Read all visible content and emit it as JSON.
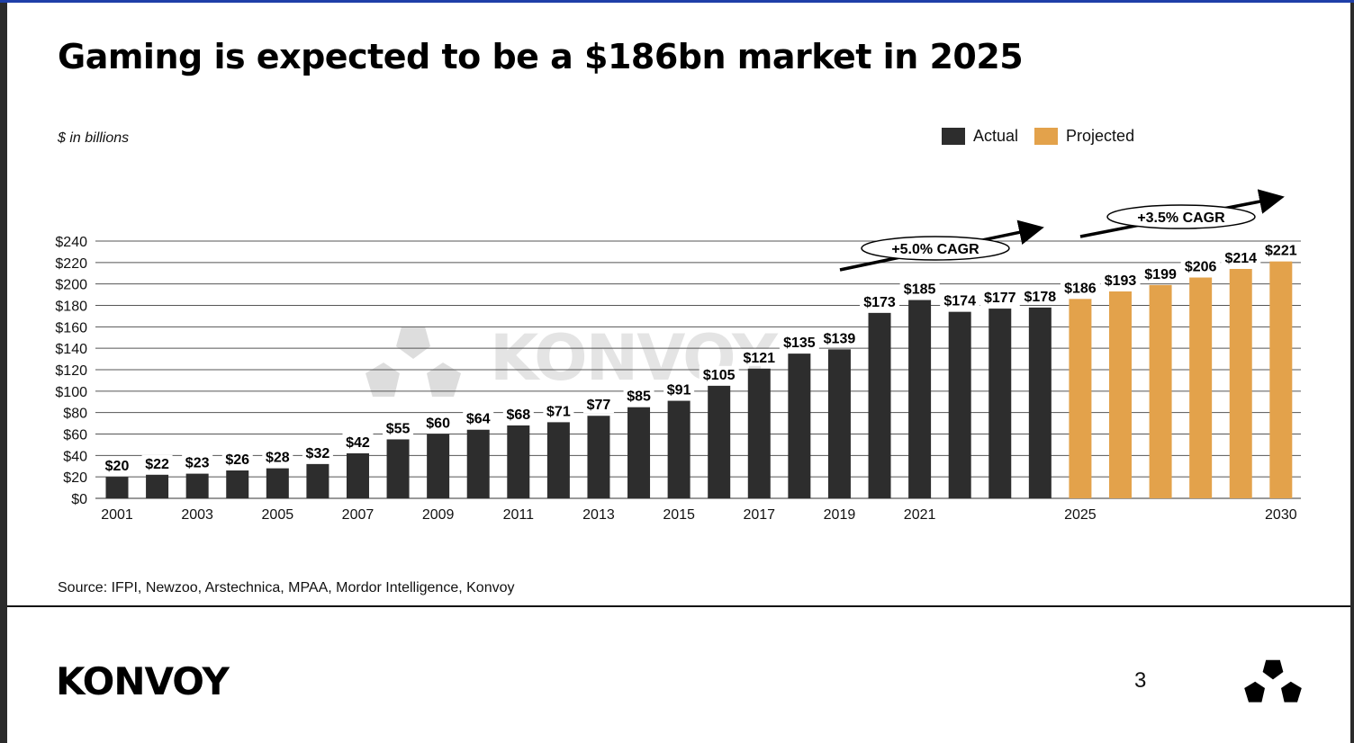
{
  "slide": {
    "title": "Gaming is expected to be a $186bn market in 2025",
    "unit_note": "$ in billions",
    "source": "Source: IFPI, Newzoo, Arstechnica, MPAA, Mordor Intelligence, Konvoy",
    "brand": "KONVOY",
    "page_number": "3",
    "watermark": "KONVOY"
  },
  "legend": [
    {
      "label": "Actual",
      "color": "#2d2d2d"
    },
    {
      "label": "Projected",
      "color": "#e3a24b"
    }
  ],
  "chart_data": {
    "type": "bar",
    "title": "",
    "xlabel": "",
    "ylabel": "",
    "ylim": [
      0,
      240
    ],
    "ytick_labels": [
      "$0",
      "$20",
      "$40",
      "$60",
      "$80",
      "$100",
      "$120",
      "$140",
      "$160",
      "$180",
      "$200",
      "$220",
      "$240"
    ],
    "ytick_values": [
      0,
      20,
      40,
      60,
      80,
      100,
      120,
      140,
      160,
      180,
      200,
      220,
      240
    ],
    "categories": [
      2001,
      2002,
      2003,
      2004,
      2005,
      2006,
      2007,
      2008,
      2009,
      2010,
      2011,
      2012,
      2013,
      2014,
      2015,
      2016,
      2017,
      2018,
      2019,
      2020,
      2021,
      2022,
      2023,
      2024,
      2025,
      2026,
      2027,
      2028,
      2029,
      2030
    ],
    "xtick_labels": [
      "2001",
      "",
      "2003",
      "",
      "2005",
      "",
      "2007",
      "",
      "2009",
      "",
      "2011",
      "",
      "2013",
      "",
      "2015",
      "",
      "2017",
      "",
      "2019",
      "",
      "2021",
      "",
      "",
      "",
      "2025",
      "",
      "",
      "",
      "",
      "2030"
    ],
    "values": [
      20,
      22,
      23,
      26,
      28,
      32,
      42,
      55,
      60,
      64,
      68,
      71,
      77,
      85,
      91,
      105,
      121,
      135,
      139,
      173,
      185,
      174,
      177,
      178,
      186,
      193,
      199,
      206,
      214,
      221
    ],
    "value_labels": [
      "$20",
      "$22",
      "$23",
      "$26",
      "$28",
      "$32",
      "$42",
      "$55",
      "$60",
      "$64",
      "$68",
      "$71",
      "$77",
      "$85",
      "$91",
      "$105",
      "$121",
      "$135",
      "$139",
      "$173",
      "$185",
      "$174",
      "$177",
      "$178",
      "$186",
      "$193",
      "$199",
      "$206",
      "$214",
      "$221"
    ],
    "series_type": [
      "Actual",
      "Actual",
      "Actual",
      "Actual",
      "Actual",
      "Actual",
      "Actual",
      "Actual",
      "Actual",
      "Actual",
      "Actual",
      "Actual",
      "Actual",
      "Actual",
      "Actual",
      "Actual",
      "Actual",
      "Actual",
      "Actual",
      "Actual",
      "Actual",
      "Actual",
      "Actual",
      "Actual",
      "Projected",
      "Projected",
      "Projected",
      "Projected",
      "Projected",
      "Projected"
    ],
    "grid": true,
    "legend_position": "top-right",
    "annotations": [
      {
        "text": "+5.0% CAGR"
      },
      {
        "text": "+3.5% CAGR"
      }
    ]
  }
}
